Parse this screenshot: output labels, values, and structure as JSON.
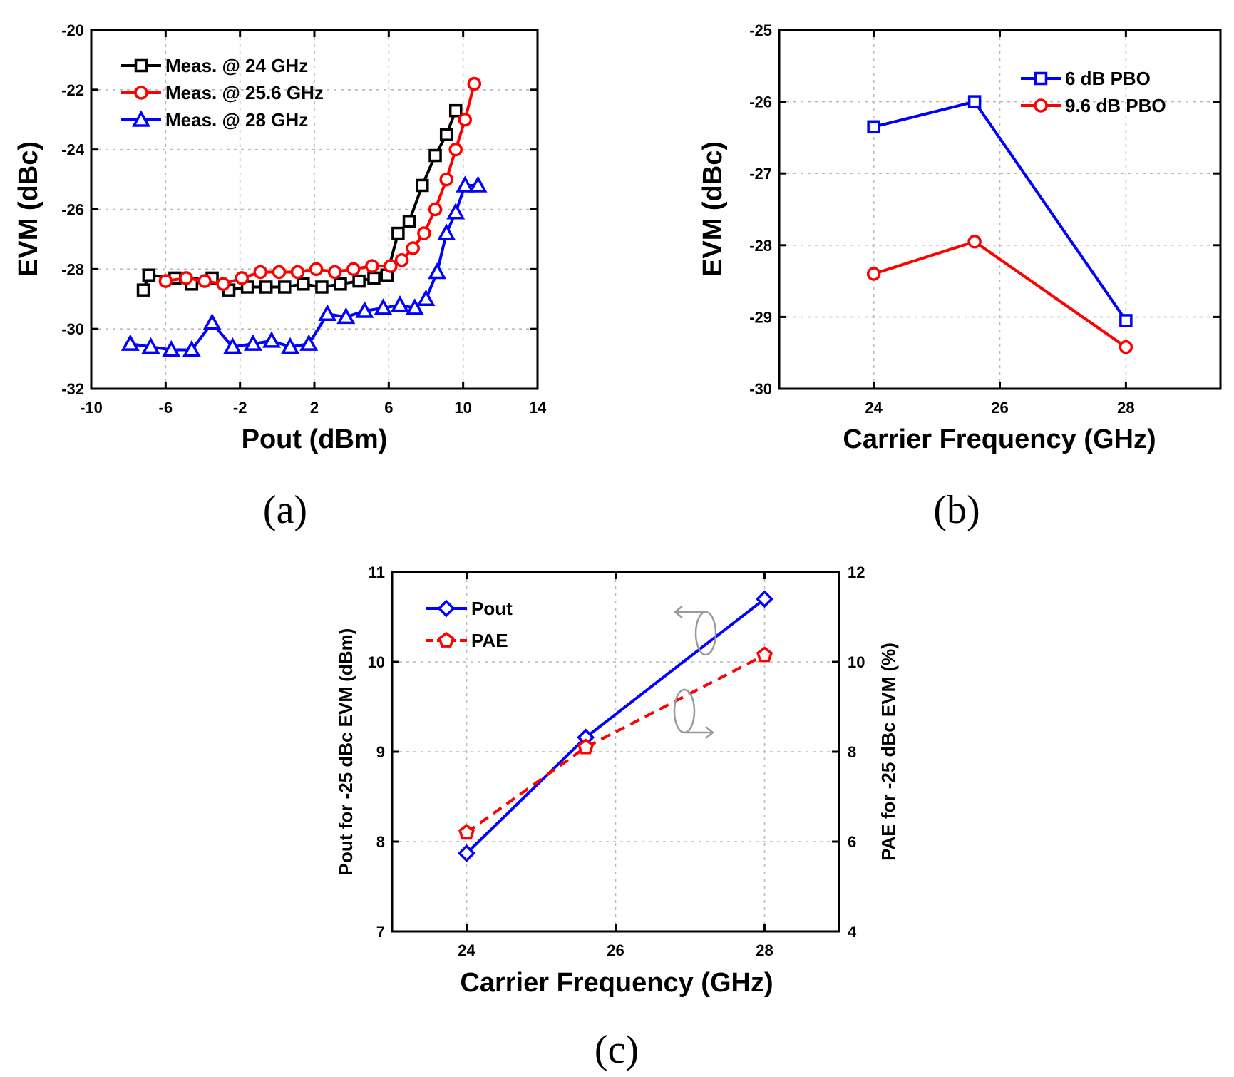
{
  "chart_data": [
    {
      "id": "a",
      "type": "line",
      "caption": "(a)",
      "xlabel": "Pout (dBm)",
      "ylabel": "EVM (dBc)",
      "xlim": [
        -10,
        14
      ],
      "ylim": [
        -32,
        -20
      ],
      "xticks": [
        "-10",
        "-6",
        "-2",
        "2",
        "6",
        "10",
        "14"
      ],
      "yticks": [
        "-20",
        "-22",
        "-24",
        "-26",
        "-28",
        "-30",
        "-32"
      ],
      "legend_position": "top-left",
      "series": [
        {
          "name": "Meas. @ 24 GHz",
          "color": "#000000",
          "marker": "square",
          "x": [
            -7.2,
            -6.9,
            -5.5,
            -4.6,
            -3.5,
            -2.6,
            -1.6,
            -0.6,
            0.4,
            1.4,
            2.4,
            3.4,
            4.4,
            5.2,
            5.9,
            6.5,
            7.1,
            7.8,
            8.5,
            9.1,
            9.6
          ],
          "y": [
            -28.7,
            -28.2,
            -28.3,
            -28.5,
            -28.3,
            -28.7,
            -28.6,
            -28.6,
            -28.6,
            -28.5,
            -28.6,
            -28.5,
            -28.4,
            -28.3,
            -28.2,
            -26.8,
            -26.4,
            -25.2,
            -24.2,
            -23.5,
            -22.7
          ]
        },
        {
          "name": "Meas. @ 25.6 GHz",
          "color": "#ff0000",
          "marker": "circle",
          "x": [
            -6.0,
            -4.9,
            -3.9,
            -2.9,
            -1.9,
            -0.9,
            0.1,
            1.1,
            2.1,
            3.1,
            4.1,
            5.1,
            6.1,
            6.7,
            7.3,
            7.9,
            8.5,
            9.1,
            9.6,
            10.1,
            10.6
          ],
          "y": [
            -28.4,
            -28.3,
            -28.4,
            -28.5,
            -28.3,
            -28.1,
            -28.1,
            -28.1,
            -28.0,
            -28.1,
            -28.0,
            -27.9,
            -27.9,
            -27.7,
            -27.3,
            -26.8,
            -26.0,
            -25.0,
            -24.0,
            -23.0,
            -21.8
          ]
        },
        {
          "name": "Meas. @ 28 GHz",
          "color": "#0000ff",
          "marker": "triangle",
          "x": [
            -7.9,
            -6.8,
            -5.7,
            -4.6,
            -3.5,
            -2.4,
            -1.3,
            -0.3,
            0.7,
            1.7,
            2.7,
            3.7,
            4.7,
            5.7,
            6.6,
            7.4,
            8.0,
            8.6,
            9.1,
            9.6,
            10.1,
            10.8
          ],
          "y": [
            -30.5,
            -30.6,
            -30.7,
            -30.7,
            -29.8,
            -30.6,
            -30.5,
            -30.4,
            -30.6,
            -30.5,
            -29.5,
            -29.6,
            -29.4,
            -29.3,
            -29.2,
            -29.3,
            -29.0,
            -28.1,
            -26.8,
            -26.1,
            -25.2,
            -25.2
          ]
        }
      ]
    },
    {
      "id": "b",
      "type": "line",
      "caption": "(b)",
      "xlabel": "Carrier Frequency (GHz)",
      "ylabel": "EVM (dBc)",
      "xlim": [
        22.5,
        29.5
      ],
      "ylim": [
        -30,
        -25
      ],
      "xticks": [
        "24",
        "26",
        "28"
      ],
      "yticks": [
        "-25",
        "-26",
        "-27",
        "-28",
        "-29",
        "-30"
      ],
      "legend_position": "top-right",
      "series": [
        {
          "name": "6 dB PBO",
          "color": "#0000ff",
          "marker": "square",
          "x": [
            24,
            25.6,
            28
          ],
          "y": [
            -26.35,
            -26.0,
            -29.05
          ]
        },
        {
          "name": "9.6 dB PBO",
          "color": "#ff0000",
          "marker": "circle",
          "x": [
            24,
            25.6,
            28
          ],
          "y": [
            -28.4,
            -27.95,
            -29.42
          ]
        }
      ]
    },
    {
      "id": "c",
      "type": "line",
      "caption": "(c)",
      "xlabel": "Carrier Frequency (GHz)",
      "ylabel": "Pout for -25 dBc EVM (dBm)",
      "y2label": "PAE for -25 dBc EVM (%)",
      "xlim": [
        23,
        29
      ],
      "ylim": [
        7,
        11
      ],
      "y2lim": [
        4,
        12
      ],
      "xticks": [
        "24",
        "26",
        "28"
      ],
      "yticks": [
        "7",
        "8",
        "9",
        "10",
        "11"
      ],
      "y2ticks": [
        "4",
        "6",
        "8",
        "10",
        "12"
      ],
      "legend_position": "top-left",
      "series": [
        {
          "name": "Pout",
          "color": "#0000ff",
          "marker": "diamond",
          "axis": "left",
          "dashed": false,
          "x": [
            24,
            25.6,
            28
          ],
          "y": [
            7.87,
            9.16,
            10.7
          ]
        },
        {
          "name": "PAE",
          "color": "#ff0000",
          "marker": "pentagon",
          "axis": "right",
          "dashed": true,
          "x": [
            24,
            25.6,
            28
          ],
          "y": [
            6.2,
            8.1,
            10.15
          ]
        }
      ]
    }
  ]
}
